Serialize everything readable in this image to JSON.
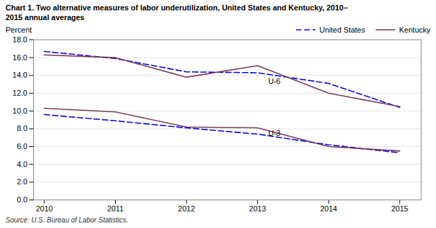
{
  "chart_data": {
    "type": "line",
    "title": "Chart 1. Two alternative measures of labor underutilization, United States and Kentucky, 2010–\n2015 annual averages",
    "ylabel": "Percent",
    "caption": "Source: U.S. Bureau of Labor Statistics.",
    "x": [
      2010,
      2011,
      2012,
      2013,
      2014,
      2015
    ],
    "series": [
      {
        "name": "United States",
        "color": "#0000EE",
        "line_style": "dashed",
        "values": [
          16.7,
          15.9,
          14.4,
          14.3,
          13.1,
          10.4
        ]
      },
      {
        "name": "Kentucky",
        "color": "#7B3558",
        "line_style": "solid",
        "values": [
          16.3,
          16.0,
          13.8,
          15.1,
          12.0,
          10.5
        ]
      },
      {
        "color": "#0000EE",
        "line_style": "dashed",
        "values": [
          9.6,
          8.9,
          8.1,
          7.4,
          6.2,
          5.3
        ]
      },
      {
        "color": "#7B3558",
        "line_style": "solid",
        "values": [
          10.3,
          9.9,
          8.2,
          8.1,
          6.0,
          5.5
        ]
      }
    ],
    "annotations": [
      {
        "text": "U-6",
        "x": 2013.15,
        "y": 13.05
      },
      {
        "text": "U-3",
        "x": 2013.15,
        "y": 7.2
      }
    ],
    "xlim": [
      2009.85,
      2015.3
    ],
    "xticks": [
      2010,
      2011,
      2012,
      2013,
      2014,
      2015
    ],
    "ylim": [
      0,
      18.0
    ],
    "yticks": [
      {
        "value": 0,
        "label": "0.0"
      },
      {
        "value": 2,
        "label": "2.0"
      },
      {
        "value": 4,
        "label": "4.0"
      },
      {
        "value": 6,
        "label": "6.0"
      },
      {
        "value": 8,
        "label": "8.0"
      },
      {
        "value": 10,
        "label": "10.0"
      },
      {
        "value": 12,
        "label": "12.0"
      },
      {
        "value": 14,
        "label": "14.0"
      },
      {
        "value": 16,
        "label": "16.0"
      },
      {
        "value": 18,
        "label": "18.0"
      }
    ],
    "grid": true,
    "legend": "upper right"
  }
}
